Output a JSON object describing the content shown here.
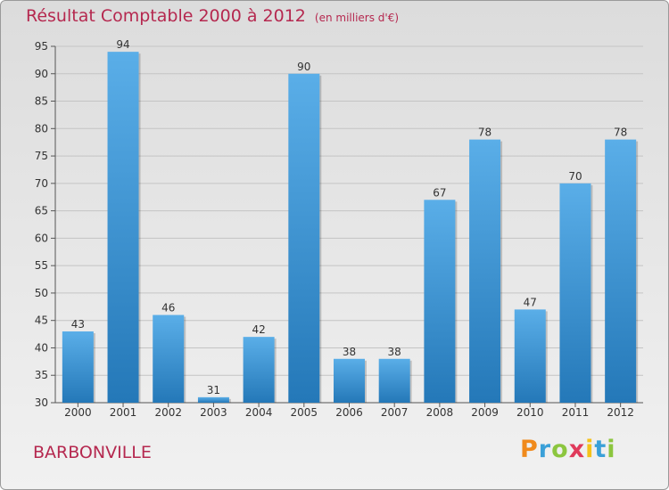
{
  "header": {
    "title": "Résultat Comptable 2000 à 2012",
    "subtitle": "(en milliers d'€)"
  },
  "footer": {
    "city": "BARBONVILLE",
    "logo": "Proxiti"
  },
  "colors": {
    "title": "#b5284f",
    "bar_top": "#5aaee8",
    "bar_bottom": "#2478b8"
  },
  "chart_data": {
    "type": "bar",
    "categories": [
      "2000",
      "2001",
      "2002",
      "2003",
      "2004",
      "2005",
      "2006",
      "2007",
      "2008",
      "2009",
      "2010",
      "2011",
      "2012"
    ],
    "values": [
      43,
      94,
      46,
      31,
      42,
      90,
      38,
      38,
      67,
      78,
      47,
      70,
      78
    ],
    "data_labels": [
      "43",
      "94",
      "46",
      "31",
      "42",
      "90",
      "38",
      "38",
      "67",
      "78",
      "47",
      "70",
      "78"
    ],
    "ylim": [
      30,
      95
    ],
    "yticks": [
      30,
      35,
      40,
      45,
      50,
      55,
      60,
      65,
      70,
      75,
      80,
      85,
      90,
      95
    ],
    "grid": true
  }
}
